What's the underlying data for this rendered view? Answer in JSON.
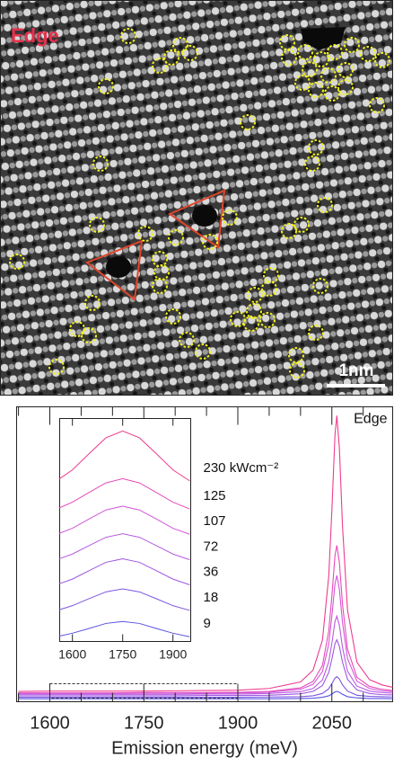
{
  "image": {
    "label": "Edge",
    "scale_bar": "1nm"
  },
  "chart_data": [
    {
      "type": "line",
      "label": "Edge",
      "x_label": "Emission energy (meV)",
      "x": [
        1550,
        1600,
        1650,
        1700,
        1750,
        1800,
        1850,
        1900,
        1950,
        2000,
        2020,
        2035,
        2045,
        2050,
        2055,
        2058,
        2062,
        2067,
        2075,
        2090,
        2110,
        2130,
        2147
      ],
      "xlim": [
        1547,
        2147
      ],
      "xticks": [
        1600,
        1750,
        1900,
        2050
      ],
      "xminorticks": [
        1550,
        1650,
        1700,
        1800,
        1850,
        1950,
        2000,
        2100
      ],
      "ylim": [
        0,
        1
      ],
      "series": [
        {
          "color": "#ee3c8e",
          "values": [
            0.035,
            0.036,
            0.036,
            0.036,
            0.036,
            0.037,
            0.038,
            0.039,
            0.045,
            0.067,
            0.107,
            0.209,
            0.425,
            0.647,
            0.905,
            0.97,
            0.861,
            0.595,
            0.311,
            0.134,
            0.075,
            0.057,
            0.049
          ]
        },
        {
          "color": "#e54ab8",
          "values": [
            0.03,
            0.03,
            0.03,
            0.03,
            0.031,
            0.031,
            0.031,
            0.032,
            0.035,
            0.047,
            0.069,
            0.123,
            0.239,
            0.357,
            0.496,
            0.53,
            0.472,
            0.33,
            0.178,
            0.083,
            0.052,
            0.042,
            0.038
          ]
        },
        {
          "color": "#d355d8",
          "values": [
            0.028,
            0.028,
            0.028,
            0.028,
            0.029,
            0.029,
            0.029,
            0.03,
            0.032,
            0.042,
            0.059,
            0.102,
            0.195,
            0.29,
            0.4,
            0.428,
            0.381,
            0.268,
            0.146,
            0.07,
            0.045,
            0.037,
            0.034
          ]
        },
        {
          "color": "#b95ae0",
          "values": [
            0.025,
            0.025,
            0.025,
            0.025,
            0.025,
            0.025,
            0.026,
            0.026,
            0.028,
            0.034,
            0.045,
            0.074,
            0.135,
            0.198,
            0.272,
            0.29,
            0.259,
            0.184,
            0.103,
            0.053,
            0.036,
            0.031,
            0.029
          ]
        },
        {
          "color": "#9d58e0",
          "values": [
            0.02,
            0.02,
            0.02,
            0.02,
            0.02,
            0.02,
            0.021,
            0.021,
            0.022,
            0.027,
            0.035,
            0.055,
            0.099,
            0.144,
            0.197,
            0.21,
            0.188,
            0.134,
            0.076,
            0.04,
            0.028,
            0.024,
            0.023
          ]
        },
        {
          "color": "#7d55e0",
          "values": [
            0.015,
            0.015,
            0.015,
            0.015,
            0.015,
            0.015,
            0.015,
            0.015,
            0.016,
            0.017,
            0.02,
            0.028,
            0.044,
            0.061,
            0.08,
            0.085,
            0.077,
            0.057,
            0.036,
            0.022,
            0.018,
            0.017,
            0.016
          ]
        },
        {
          "color": "#5a52e2",
          "values": [
            0.01,
            0.01,
            0.01,
            0.01,
            0.01,
            0.01,
            0.01,
            0.01,
            0.01,
            0.011,
            0.012,
            0.015,
            0.02,
            0.026,
            0.033,
            0.035,
            0.032,
            0.025,
            0.017,
            0.013,
            0.011,
            0.011,
            0.01
          ]
        }
      ]
    },
    {
      "type": "line",
      "x": [
        1560,
        1600,
        1650,
        1700,
        1750,
        1800,
        1850,
        1900,
        1950
      ],
      "xlim": [
        1562,
        1953
      ],
      "xticks": [
        1600,
        1750,
        1900
      ],
      "ylim": [
        0,
        8.9
      ],
      "series": [
        {
          "name": "230 kWcm⁻²",
          "color": "#ee3c8e",
          "values": [
            6.48,
            6.85,
            7.5,
            8.13,
            8.4,
            8.13,
            7.5,
            6.85,
            6.41
          ]
        },
        {
          "name": "125",
          "color": "#e54ab8",
          "values": [
            5.33,
            5.56,
            5.95,
            6.33,
            6.5,
            6.33,
            5.95,
            5.56,
            5.29
          ]
        },
        {
          "name": "107",
          "color": "#d355d8",
          "values": [
            4.31,
            4.52,
            4.89,
            5.25,
            5.4,
            5.25,
            4.89,
            4.52,
            4.28
          ]
        },
        {
          "name": "72",
          "color": "#b95ae0",
          "values": [
            3.3,
            3.49,
            3.83,
            4.16,
            4.3,
            4.16,
            3.83,
            3.49,
            3.26
          ]
        },
        {
          "name": "36",
          "color": "#9d58e0",
          "values": [
            2.3,
            2.49,
            2.83,
            3.16,
            3.3,
            3.16,
            2.83,
            2.49,
            2.26
          ]
        },
        {
          "name": "18",
          "color": "#7d55e0",
          "values": [
            1.26,
            1.43,
            1.71,
            1.98,
            2.1,
            1.98,
            1.71,
            1.43,
            1.24
          ]
        },
        {
          "name": "9",
          "color": "#5a52e2",
          "values": [
            0.21,
            0.33,
            0.52,
            0.72,
            0.8,
            0.72,
            0.52,
            0.33,
            0.19
          ]
        }
      ]
    }
  ]
}
